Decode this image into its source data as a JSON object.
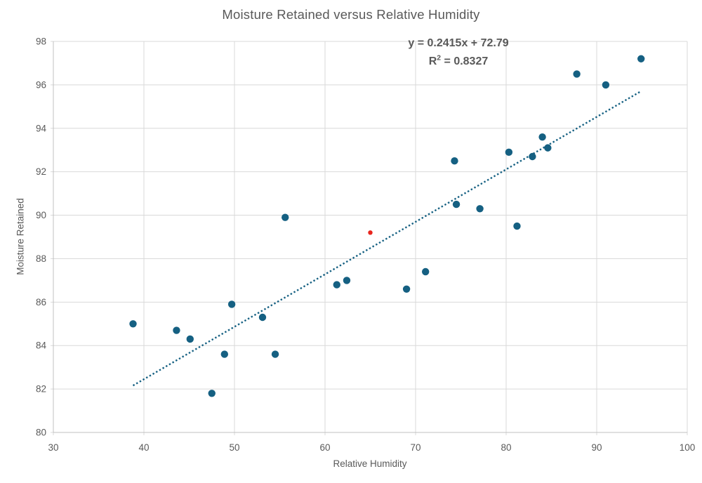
{
  "chart_data": {
    "type": "scatter",
    "title": "Moisture Retained versus Relative Humidity",
    "xlabel": "Relative Humidity",
    "ylabel": "Moisture Retained",
    "xlim": [
      30,
      100
    ],
    "ylim": [
      80,
      98
    ],
    "xticks": [
      30,
      40,
      50,
      60,
      70,
      80,
      90,
      100
    ],
    "yticks": [
      80,
      82,
      84,
      86,
      88,
      90,
      92,
      94,
      96,
      98
    ],
    "grid": true,
    "legend": "none",
    "series": [
      {
        "name": "observations",
        "color": "#156082",
        "marker": "circle",
        "marker_radius": 5.2,
        "points": [
          [
            38.8,
            85.0
          ],
          [
            43.6,
            84.7
          ],
          [
            45.1,
            84.3
          ],
          [
            47.5,
            81.8
          ],
          [
            48.9,
            83.6
          ],
          [
            49.7,
            85.9
          ],
          [
            53.1,
            85.3
          ],
          [
            54.5,
            83.6
          ],
          [
            55.6,
            89.9
          ],
          [
            61.3,
            86.8
          ],
          [
            62.4,
            87.0
          ],
          [
            69.0,
            86.6
          ],
          [
            71.1,
            87.4
          ],
          [
            74.3,
            92.5
          ],
          [
            74.5,
            90.5
          ],
          [
            77.1,
            90.3
          ],
          [
            80.3,
            92.9
          ],
          [
            81.2,
            89.5
          ],
          [
            82.9,
            92.7
          ],
          [
            84.0,
            93.6
          ],
          [
            84.6,
            93.1
          ],
          [
            87.8,
            96.5
          ],
          [
            91.0,
            96.0
          ],
          [
            94.9,
            97.2
          ]
        ]
      },
      {
        "name": "highlighted-point",
        "color": "#e8251d",
        "marker": "circle",
        "marker_radius": 3.2,
        "points": [
          [
            65.0,
            89.2
          ]
        ]
      }
    ],
    "trendline": {
      "slope": 0.2415,
      "intercept": 72.79,
      "r_squared": 0.8327,
      "color": "#156082",
      "style": "dotted",
      "equation_label": "y = 0.2415x + 72.79",
      "r2_label": {
        "base": "R",
        "sup": "2",
        "rest": " = 0.8327"
      }
    },
    "colors": {
      "grid": "#d9d9d9",
      "axis": "#c0c0c0",
      "text": "#595959"
    }
  }
}
